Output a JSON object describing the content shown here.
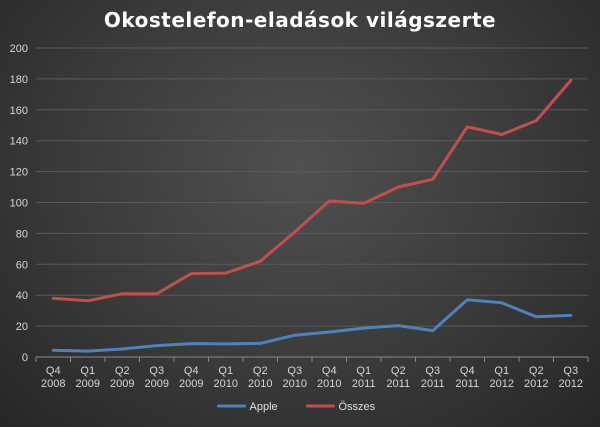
{
  "chart_data": {
    "type": "line",
    "title": "Okostelefon-eladások világszerte",
    "xlabel": "",
    "ylabel": "",
    "ylim": [
      0,
      200
    ],
    "yticks": [
      0,
      20,
      40,
      60,
      80,
      100,
      120,
      140,
      160,
      180,
      200
    ],
    "grid": true,
    "legend_position": "bottom",
    "categories": [
      [
        "Q4",
        "2008"
      ],
      [
        "Q1",
        "2009"
      ],
      [
        "Q2",
        "2009"
      ],
      [
        "Q3",
        "2009"
      ],
      [
        "Q4",
        "2009"
      ],
      [
        "Q1",
        "2010"
      ],
      [
        "Q2",
        "2010"
      ],
      [
        "Q3",
        "2010"
      ],
      [
        "Q4",
        "2010"
      ],
      [
        "Q1",
        "2011"
      ],
      [
        "Q2",
        "2011"
      ],
      [
        "Q3",
        "2011"
      ],
      [
        "Q4",
        "2011"
      ],
      [
        "Q1",
        "2012"
      ],
      [
        "Q2",
        "2012"
      ],
      [
        "Q3",
        "2012"
      ]
    ],
    "series": [
      {
        "name": "Apple",
        "color": "#4f81bd",
        "values": [
          4.4,
          3.8,
          5.2,
          7.4,
          8.7,
          8.5,
          8.8,
          14.1,
          16.2,
          18.7,
          20.3,
          17.1,
          37.0,
          35.1,
          26.0,
          26.9
        ]
      },
      {
        "name": "Összes",
        "color": "#c0504d",
        "values": [
          38.0,
          36.4,
          41.0,
          41.0,
          54.0,
          54.3,
          62.0,
          81.0,
          101.0,
          99.5,
          110.0,
          115.0,
          149.0,
          144.0,
          153.0,
          179.0
        ]
      }
    ]
  }
}
